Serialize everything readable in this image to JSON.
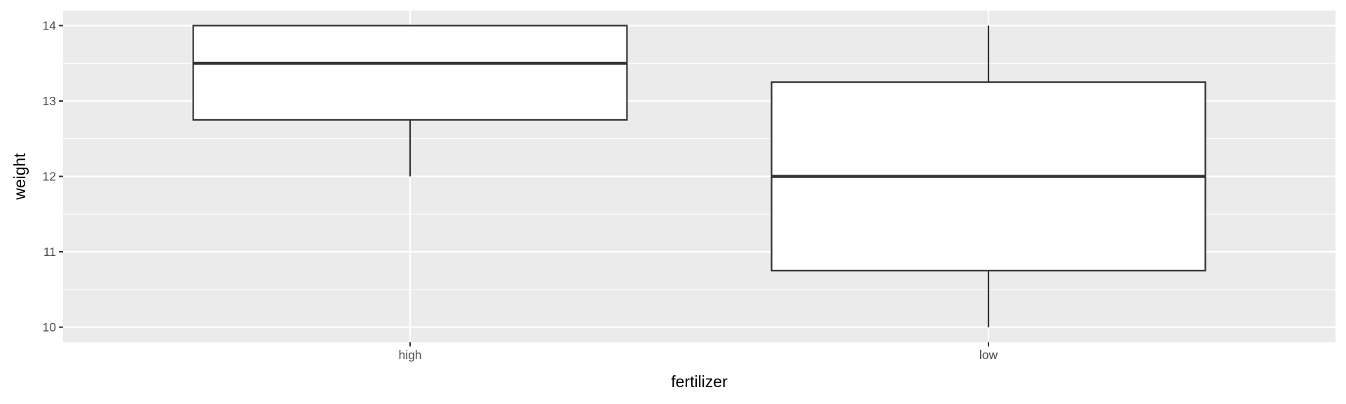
{
  "chart_data": {
    "type": "boxplot",
    "xlabel": "fertilizer",
    "ylabel": "weight",
    "ylim": [
      9.8,
      14.2
    ],
    "y_ticks": [
      "10",
      "11",
      "12",
      "13",
      "14"
    ],
    "categories": [
      "high",
      "low"
    ],
    "boxes": [
      {
        "category": "high",
        "whisker_low": 12,
        "q1": 12.75,
        "median": 13.5,
        "q3": 14,
        "whisker_high": 14
      },
      {
        "category": "low",
        "whisker_low": 10,
        "q1": 10.75,
        "median": 12,
        "q3": 13.25,
        "whisker_high": 14
      }
    ],
    "grid": true,
    "colors": {
      "panel": "#EBEBEB",
      "gridline": "#FFFFFF",
      "box_fill": "#FFFFFF",
      "box_stroke": "#333333",
      "tick_text": "#4D4D4D",
      "axis_title": "#000000"
    }
  }
}
